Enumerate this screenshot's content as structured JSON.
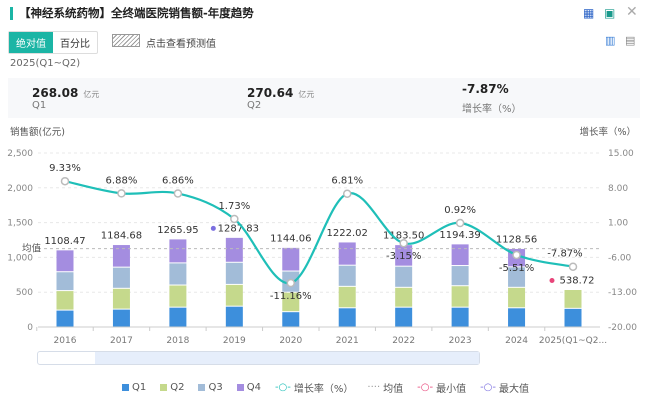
{
  "header": {
    "title": "【神经系统药物】全终端医院销售额-年度趋势",
    "icons": [
      "excel-export-icon",
      "image-export-icon",
      "close-icon",
      "bar-chart-icon",
      "document-icon"
    ]
  },
  "toggle": {
    "absolute": "绝对值",
    "percent": "百分比",
    "forecast": "点击查看预测值"
  },
  "summary": {
    "period": "2025(Q1~Q2)",
    "q1_value": "268.08",
    "q1_unit": "亿元",
    "q1_label": "Q1",
    "q2_value": "270.64",
    "q2_unit": "亿元",
    "q2_label": "Q2",
    "growth_value": "-7.87%",
    "growth_label": "增长率（%）"
  },
  "chart_data": {
    "type": "bar",
    "ylabel": "销售额(亿元)",
    "y2label": "增长率（%）",
    "ylim": [
      0,
      2500
    ],
    "y2lim": [
      -20,
      15
    ],
    "yticks": [
      "0",
      "500",
      "1,000",
      "1,500",
      "2,000",
      "2,500"
    ],
    "y2ticks": [
      "-20.00",
      "-13.00",
      "-6.00",
      "1.00",
      "8.00",
      "15.00"
    ],
    "categories": [
      "2016",
      "2017",
      "2018",
      "2019",
      "2020",
      "2021",
      "2022",
      "2023",
      "2024",
      "2025(Q1~Q2..."
    ],
    "series": [
      {
        "name": "Q1",
        "color": "#3d8fdc",
        "values": [
          243,
          257,
          285,
          299,
          220,
          276,
          285,
          285,
          276,
          268.08
        ]
      },
      {
        "name": "Q2",
        "color": "#c5d98c",
        "values": [
          280,
          299,
          318,
          313,
          280,
          308,
          285,
          308,
          294,
          270.64
        ]
      },
      {
        "name": "Q3",
        "color": "#a2bcd8",
        "values": [
          271,
          304,
          318,
          318,
          304,
          304,
          304,
          290,
          294,
          0
        ]
      },
      {
        "name": "Q4",
        "color": "#a48de0",
        "values": [
          314.47,
          324.68,
          344.95,
          357.83,
          340.06,
          334.02,
          309.5,
          311.39,
          264.56,
          0
        ]
      }
    ],
    "totals": [
      "1108.47",
      "1184.68",
      "1265.95",
      "1287.83",
      "1144.06",
      "1222.02",
      "1183.50",
      "1194.39",
      "1128.56",
      "538.72"
    ],
    "growth": {
      "name": "增长率（%）",
      "color": "#1fbfb8",
      "values": [
        9.33,
        6.88,
        6.86,
        1.73,
        -11.16,
        6.81,
        -3.15,
        0.92,
        -5.51,
        -7.87
      ],
      "labels": [
        "9.33%",
        "6.88%",
        "6.86%",
        "1.73%",
        "-11.16%",
        "6.81%",
        "-3.15%",
        "0.92%",
        "-5.51%",
        "-7.87%"
      ]
    },
    "mean": {
      "label": "均值",
      "value": 1125.8
    },
    "max": {
      "label": "最大值",
      "index": 3,
      "color": "#7b6fe0"
    },
    "min": {
      "label": "最小值",
      "index": 9,
      "color": "#e8457a"
    },
    "legend_placement": "bottom",
    "grid": true
  }
}
